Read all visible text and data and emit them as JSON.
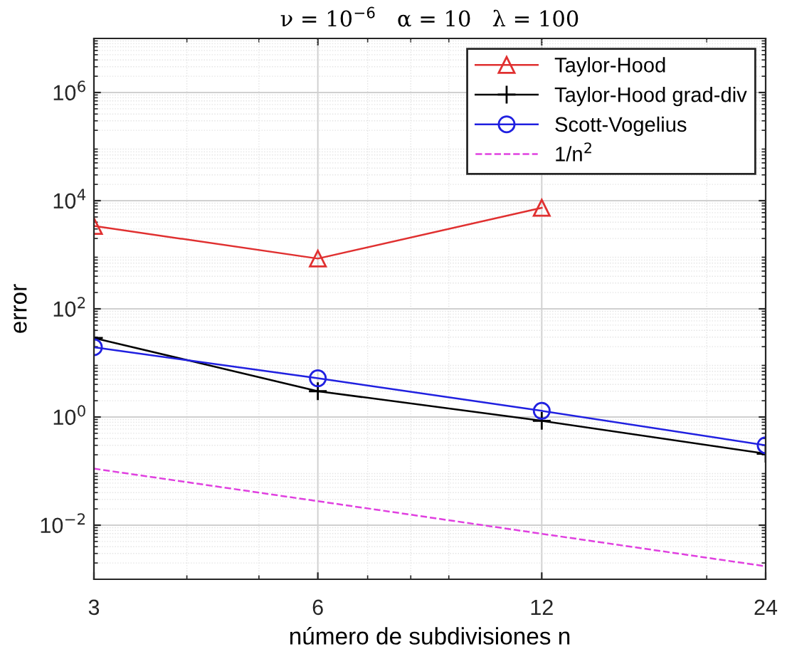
{
  "chart_data": {
    "type": "line",
    "title": "ν = 10$^{−6}$   α = 10   λ = 100",
    "xlabel": "número de subdivisiones n",
    "ylabel": "error",
    "log": "xy",
    "grid": true,
    "legend": "top right",
    "xlim": [
      3,
      24
    ],
    "xticks": [
      3,
      6,
      12,
      24
    ],
    "ylim": [
      0.001,
      10000000
    ],
    "yticks": [
      {
        "value": 0.01,
        "label": "10$^{−2}$"
      },
      {
        "value": 1,
        "label": "10$^{0}$"
      },
      {
        "value": 100,
        "label": "10$^{2}$"
      },
      {
        "value": 10000,
        "label": "10$^{4}$"
      },
      {
        "value": 1000000,
        "label": "10$^{6}$"
      }
    ],
    "series": [
      {
        "name": "Taylor-Hood",
        "color": "#e03030",
        "marker": "triangle",
        "line_style": "solid",
        "x": [
          3,
          6,
          12
        ],
        "values": [
          3400,
          850,
          7400
        ]
      },
      {
        "name": "Taylor-Hood grad-div",
        "color": "#000000",
        "marker": "cross",
        "line_style": "solid",
        "x": [
          3,
          6,
          12,
          24
        ],
        "values": [
          29,
          3.0,
          0.85,
          0.21
        ]
      },
      {
        "name": "Scott-Vogelius",
        "color": "#2020e0",
        "marker": "circle",
        "line_style": "solid",
        "x": [
          3,
          6,
          12,
          24
        ],
        "values": [
          19.5,
          5.2,
          1.3,
          0.3
        ]
      },
      {
        "name": "1/n$^{2}$",
        "color": "#e040e0",
        "marker": "none",
        "line_style": "dashed",
        "x": [
          3,
          6,
          12,
          24
        ],
        "values": [
          0.111,
          0.0278,
          0.00694,
          0.00174
        ]
      }
    ]
  }
}
